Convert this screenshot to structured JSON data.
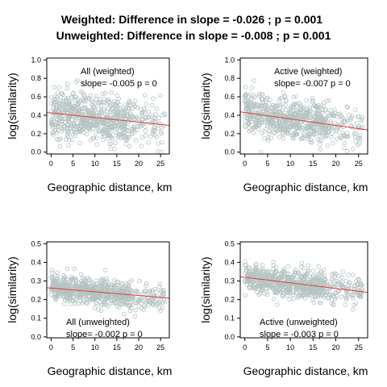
{
  "figure_title": {
    "line1": "Weighted: Difference in slope = -0.026 ; p = 0.001",
    "line2": "Unweighted: Difference in slope = -0.008 ; p = 0.001"
  },
  "colors": {
    "points": "#b4c2c2",
    "fit_line": "#e8393a",
    "axis": "#000000"
  },
  "chart_data": [
    {
      "type": "scatter",
      "title": "All (weighted)",
      "annotation": "slope= -0.005  p =  0",
      "annotation_position": "top-center",
      "xlabel": "Geographic distance, km",
      "ylabel": "log(similarity)",
      "xlim": [
        -1,
        27
      ],
      "ylim": [
        -0.02,
        1.02
      ],
      "xticks": [
        0,
        5,
        10,
        15,
        20,
        25
      ],
      "yticks": [
        0.0,
        0.2,
        0.4,
        0.6,
        0.8,
        1.0
      ],
      "ytick_labels": [
        "0.0",
        "0.2",
        "0.4",
        "0.6",
        "0.8",
        "1.0"
      ],
      "points_summary": {
        "count": 700,
        "x_range": [
          0,
          26
        ],
        "mean_at_0": 0.43,
        "spread": 0.13
      },
      "fit": {
        "intercept": 0.425,
        "slope": -0.005
      }
    },
    {
      "type": "scatter",
      "title": "Active (weighted)",
      "annotation": "slope= -0.007  p =  0",
      "annotation_position": "top-center",
      "xlabel": "Geographic distance, km",
      "ylabel": "log(similarity)",
      "xlim": [
        -1,
        27
      ],
      "ylim": [
        -0.02,
        1.02
      ],
      "xticks": [
        0,
        5,
        10,
        15,
        20,
        25
      ],
      "yticks": [
        0.0,
        0.2,
        0.4,
        0.6,
        0.8,
        1.0
      ],
      "ytick_labels": [
        "0.0",
        "0.2",
        "0.4",
        "0.6",
        "0.8",
        "1.0"
      ],
      "points_summary": {
        "count": 700,
        "x_range": [
          0,
          26
        ],
        "mean_at_0": 0.43,
        "spread": 0.11
      },
      "fit": {
        "intercept": 0.43,
        "slope": -0.007
      }
    },
    {
      "type": "scatter",
      "title": "All (unweighted)",
      "annotation": "slope= -0.002  p =  0",
      "annotation_position": "bottom-left",
      "xlabel": "Geographic distance, km",
      "ylabel": "log(similarity)",
      "xlim": [
        -1,
        27
      ],
      "ylim": [
        -0.005,
        0.51
      ],
      "xticks": [
        0,
        5,
        10,
        15,
        20,
        25
      ],
      "yticks": [
        0.0,
        0.1,
        0.2,
        0.3,
        0.4,
        0.5
      ],
      "ytick_labels": [
        "0.0",
        "0.1",
        "0.2",
        "0.3",
        "0.4",
        "0.5"
      ],
      "points_summary": {
        "count": 700,
        "x_range": [
          0,
          26
        ],
        "mean_at_0": 0.26,
        "spread": 0.035
      },
      "fit": {
        "intercept": 0.262,
        "slope": -0.002
      }
    },
    {
      "type": "scatter",
      "title": "Active (unweighted)",
      "annotation": "slope =  -0.003  p =  0",
      "annotation_position": "bottom-center",
      "xlabel": "Geographic distance, km",
      "ylabel": "log(similarity)",
      "xlim": [
        -1,
        27
      ],
      "ylim": [
        -0.005,
        0.51
      ],
      "xticks": [
        0,
        5,
        10,
        15,
        20,
        25
      ],
      "yticks": [
        0.0,
        0.1,
        0.2,
        0.3,
        0.4,
        0.5
      ],
      "ytick_labels": [
        "0.0",
        "0.1",
        "0.2",
        "0.3",
        "0.4",
        "0.5"
      ],
      "points_summary": {
        "count": 700,
        "x_range": [
          0,
          26
        ],
        "mean_at_0": 0.31,
        "spread": 0.04
      },
      "fit": {
        "intercept": 0.32,
        "slope": -0.003
      }
    }
  ]
}
